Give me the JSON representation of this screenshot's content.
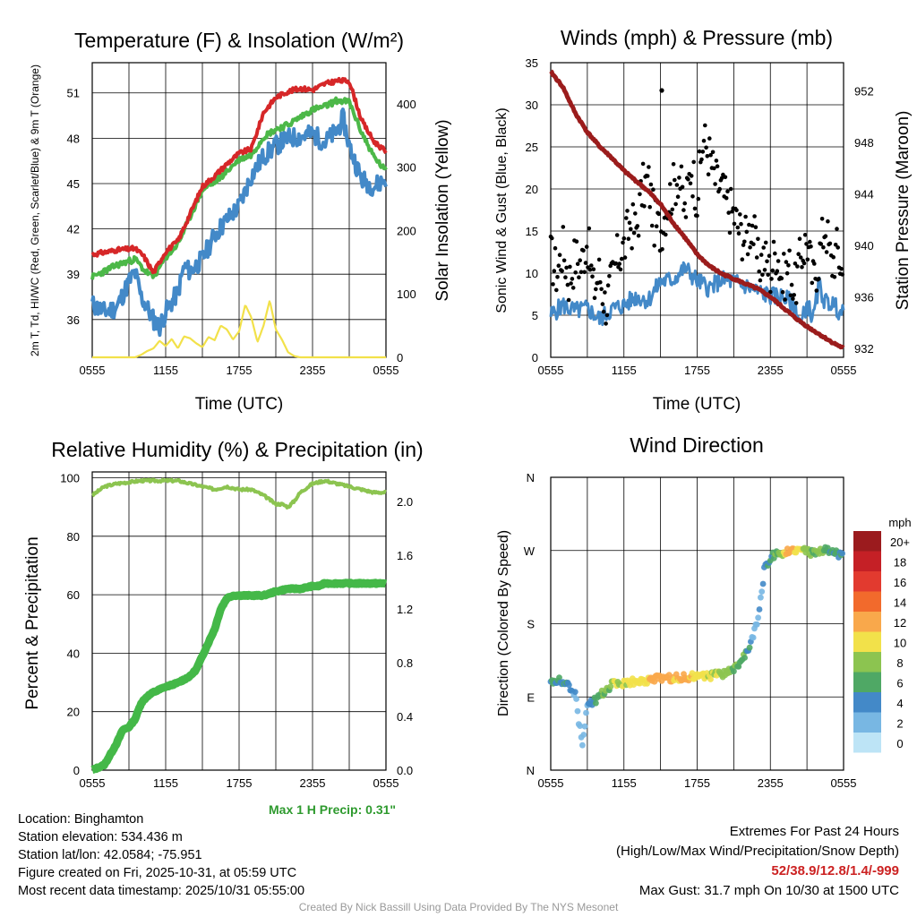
{
  "chart_data": [
    {
      "type": "line",
      "title": "Temperature (F) & Insolation (W/m²)",
      "xlabel": "Time (UTC)",
      "ylabel_left": "2m T, Td, HI/WC (Red, Green, Scarlet/Blue) & 9m T (Orange)",
      "ylabel_right": "Solar Insolation (Yellow)",
      "x_ticks": [
        "0555",
        "1155",
        "1755",
        "2355",
        "0555"
      ],
      "ylim_left": [
        33.5,
        53.0
      ],
      "yticks_left": [
        36,
        39,
        42,
        45,
        48,
        51
      ],
      "ylim_right": [
        0,
        465
      ],
      "yticks_right": [
        0,
        100,
        200,
        300,
        400
      ],
      "series": [
        {
          "name": "2m T",
          "color": "#d62728",
          "hours": [
            0,
            2,
            3.5,
            4.2,
            5,
            6,
            7,
            8,
            9,
            10,
            11,
            12,
            13,
            14,
            15,
            16,
            17,
            18,
            19,
            20,
            21,
            22,
            23,
            24
          ],
          "values": [
            40.3,
            40.6,
            40.7,
            40.2,
            39.1,
            40.5,
            41.2,
            43,
            44.8,
            45.5,
            46.3,
            47,
            47.3,
            49.7,
            50.7,
            51.1,
            51.3,
            51.2,
            51.6,
            51.8,
            51.8,
            49.2,
            47.8,
            47.1
          ]
        },
        {
          "name": "Dewpoint",
          "color": "#4cb848",
          "hours": [
            0,
            2,
            3.5,
            4.2,
            5,
            6,
            7,
            8,
            9,
            10,
            11,
            12,
            13,
            14,
            15,
            16,
            17,
            18,
            19,
            20,
            21,
            22,
            23,
            24
          ],
          "values": [
            38.8,
            39.6,
            40.0,
            39.3,
            38.8,
            40.1,
            41.0,
            42.8,
            44.6,
            45.1,
            45.8,
            46.6,
            46.9,
            48.1,
            48.6,
            48.9,
            49.4,
            49.9,
            50.1,
            50.5,
            50.4,
            48.4,
            46.8,
            45.8
          ]
        },
        {
          "name": "Wind Chill",
          "color": "#4389c8",
          "hours": [
            0,
            1,
            2,
            3,
            3.5,
            4,
            5,
            5.5,
            6,
            7,
            7.5,
            8,
            9,
            10,
            11,
            12,
            13,
            14,
            15,
            16,
            17,
            18,
            19,
            20,
            20.5,
            21,
            22,
            23,
            24
          ],
          "values": [
            37,
            36.5,
            36.8,
            38.5,
            39.1,
            37.5,
            36.0,
            35.5,
            36.5,
            37.8,
            39.5,
            39.2,
            40.0,
            41.6,
            42.6,
            43.5,
            45.5,
            46.8,
            47.5,
            48.0,
            48.1,
            48.3,
            47.7,
            48.5,
            49.3,
            47.5,
            45.3,
            44.8,
            45.3
          ]
        },
        {
          "name": "Solar Insolation",
          "color": "#f2e14a",
          "axis": "right",
          "hours": [
            0,
            3.5,
            4,
            4.5,
            5,
            5.5,
            6,
            6.5,
            7,
            7.5,
            8,
            8.5,
            9,
            9.5,
            10,
            10.5,
            11,
            11.5,
            12,
            12.5,
            13,
            13.5,
            14,
            14.5,
            15,
            15.5,
            16,
            16.5,
            17,
            17.5,
            18,
            24
          ],
          "values": [
            0,
            0,
            4,
            10,
            14,
            26,
            18,
            29,
            14,
            33,
            30,
            22,
            16,
            32,
            27,
            50,
            44,
            28,
            41,
            83,
            63,
            24,
            50,
            90,
            44,
            28,
            8,
            2,
            0,
            0,
            0,
            0
          ]
        }
      ]
    },
    {
      "type": "line",
      "title": "Winds (mph) & Pressure (mb)",
      "xlabel": "Time (UTC)",
      "ylabel_left": "Sonic Wind & Gust (Blue, Black)",
      "ylabel_right": "Station Pressure (Maroon)",
      "x_ticks": [
        "0555",
        "1155",
        "1755",
        "2355",
        "0555"
      ],
      "ylim_left": [
        0,
        35
      ],
      "yticks_left": [
        0,
        5,
        10,
        15,
        20,
        25,
        30,
        35
      ],
      "ylim_right": [
        931.3,
        954.2
      ],
      "yticks_right": [
        932,
        936,
        940,
        944,
        948,
        952
      ],
      "series": [
        {
          "name": "Station Pressure",
          "color": "#9b1c1c",
          "axis": "right",
          "hours": [
            0,
            1,
            2,
            3,
            4,
            5,
            6,
            7,
            8,
            9,
            10,
            11,
            12,
            13,
            14,
            15,
            16,
            17,
            18,
            19,
            20,
            21,
            22,
            23,
            24
          ],
          "values": [
            953.5,
            952.3,
            950.3,
            948.8,
            947.7,
            946.8,
            945.8,
            945.0,
            944.2,
            943.2,
            941.8,
            940.6,
            939.3,
            938.4,
            937.8,
            937.4,
            937.0,
            936.6,
            936.0,
            935.2,
            934.4,
            933.7,
            933.1,
            932.5,
            932.0
          ]
        },
        {
          "name": "Sonic Wind",
          "color": "#4389c8",
          "hours": [
            0,
            1,
            2,
            3,
            4,
            5,
            6,
            7,
            8,
            9,
            10,
            11,
            12,
            13,
            14,
            15,
            16,
            17,
            18,
            19,
            20,
            20.5,
            21,
            21.5,
            22,
            22.5,
            23,
            24
          ],
          "values": [
            5,
            6.2,
            5.5,
            5.8,
            4.5,
            5.7,
            6.2,
            7.2,
            6.8,
            9,
            9.2,
            10.6,
            9.1,
            8.2,
            9.2,
            9,
            8.5,
            7.8,
            7.3,
            7.2,
            6.2,
            3.8,
            6.5,
            4.5,
            8.6,
            6.5,
            6.5,
            5
          ]
        },
        {
          "name": "Gust",
          "color": "#000000",
          "type": "scatter",
          "hours": [
            0,
            0.5,
            1,
            1.5,
            2,
            2.5,
            3,
            3.5,
            4,
            4.5,
            5,
            5.5,
            6,
            6.5,
            7,
            7.5,
            8,
            8.5,
            9,
            9.5,
            10,
            10.5,
            11,
            11.5,
            12,
            12.5,
            13,
            13.5,
            14,
            14.5,
            15,
            15.5,
            16,
            16.5,
            17,
            17.5,
            18,
            18.5,
            19,
            19.5,
            20,
            20.5,
            21,
            21.5,
            22,
            22.5,
            23,
            23.5,
            24
          ],
          "values": [
            12,
            10,
            13,
            9,
            12,
            11,
            14,
            8,
            10,
            6,
            9,
            12,
            13,
            16,
            15,
            20,
            21,
            16,
            15,
            18,
            20,
            22,
            17,
            23,
            19,
            26,
            24,
            21,
            20,
            18,
            17,
            15,
            14,
            16,
            11,
            12,
            10,
            13,
            9,
            11,
            8,
            12,
            14,
            9,
            12,
            16,
            11,
            13,
            9
          ]
        }
      ],
      "max_gust_point": {
        "hours": 9.1,
        "value": 31.7
      }
    },
    {
      "type": "line",
      "title": "Relative Humidity (%) & Precipitation (in)",
      "xlabel": "",
      "ylabel_left": "Percent & Precipitation",
      "x_ticks": [
        "0555",
        "1155",
        "1755",
        "2355",
        "0555"
      ],
      "ylim_left": [
        0,
        102
      ],
      "yticks_left": [
        0,
        20,
        40,
        60,
        80,
        100
      ],
      "ylim_right": [
        0,
        2.22
      ],
      "yticks_right": [
        "0.0",
        "0.4",
        "0.8",
        "1.2",
        "1.6",
        "2.0"
      ],
      "series": [
        {
          "name": "Relative Humidity",
          "color": "#8cc450",
          "hours": [
            0,
            1,
            2,
            3,
            4,
            5,
            6,
            7,
            8,
            9,
            10,
            11,
            12,
            13,
            14,
            15,
            15.5,
            16,
            16.5,
            17,
            18,
            19,
            20,
            21,
            22,
            23,
            24
          ],
          "values": [
            94,
            97,
            98,
            98.5,
            99,
            99,
            99,
            99,
            98,
            97,
            96,
            97,
            96,
            96,
            94,
            91,
            91,
            90,
            92,
            95,
            98,
            99,
            98,
            97,
            96,
            95,
            95
          ]
        },
        {
          "name": "Precipitation",
          "color": "#44b848",
          "axis": "right",
          "hours": [
            0,
            0.5,
            1,
            1.5,
            2,
            2.5,
            3,
            3.5,
            4,
            4.5,
            5,
            6,
            7,
            8,
            8.5,
            9,
            9.5,
            10,
            10.5,
            11,
            11.5,
            12,
            12.5,
            13,
            14,
            15,
            16,
            17,
            18,
            18.5,
            19,
            20,
            21,
            22,
            23,
            24
          ],
          "values": [
            0,
            0.02,
            0.04,
            0.12,
            0.2,
            0.3,
            0.32,
            0.38,
            0.5,
            0.55,
            0.58,
            0.62,
            0.65,
            0.7,
            0.75,
            0.85,
            0.95,
            1.05,
            1.2,
            1.28,
            1.3,
            1.3,
            1.3,
            1.3,
            1.3,
            1.33,
            1.35,
            1.35,
            1.37,
            1.37,
            1.39,
            1.39,
            1.39,
            1.39,
            1.39,
            1.39
          ]
        }
      ]
    },
    {
      "type": "scatter",
      "title": "Wind Direction",
      "ylabel_left": "Direction (Colored By Speed)",
      "x_ticks": [
        "0555",
        "1155",
        "1755",
        "2355",
        "0555"
      ],
      "y_ticks": [
        "N",
        "E",
        "S",
        "W",
        "N"
      ],
      "ylim_degrees": [
        0,
        360
      ],
      "colorbar": {
        "unit": "mph",
        "labels": [
          "20+",
          "18",
          "16",
          "14",
          "12",
          "10",
          "8",
          "6",
          "4",
          "2",
          "0"
        ],
        "colors": [
          "#9b1b1e",
          "#c52026",
          "#e23a2f",
          "#f26a2c",
          "#f9a84b",
          "#f2e14a",
          "#8cc450",
          "#4fa865",
          "#4389c8",
          "#78b7e3",
          "#bde4f6"
        ]
      },
      "points": {
        "hours": [
          0,
          0.3,
          0.6,
          1,
          1.3,
          1.7,
          2,
          2.3,
          2.6,
          3,
          3.3,
          3.6,
          4,
          4.3,
          4.6,
          5,
          5.5,
          6,
          6.5,
          7,
          7.5,
          8,
          8.5,
          9,
          9.5,
          10,
          10.5,
          11,
          11.5,
          12,
          12.5,
          13,
          13.5,
          14,
          14.5,
          15,
          15.5,
          16,
          16.5,
          17,
          17.5,
          18,
          18.5,
          19,
          19.5,
          20,
          20.5,
          21,
          21.5,
          22,
          22.5,
          23,
          23.5,
          24
        ],
        "degrees": [
          110,
          108,
          112,
          105,
          108,
          100,
          95,
          60,
          35,
          80,
          82,
          85,
          90,
          95,
          97,
          105,
          106,
          107,
          108,
          109,
          110,
          111,
          112,
          112,
          113,
          113,
          114,
          114,
          115,
          115,
          116,
          116,
          117,
          118,
          120,
          125,
          130,
          145,
          160,
          185,
          245,
          262,
          265,
          267,
          270,
          272,
          270,
          268,
          266,
          268,
          270,
          268,
          266,
          262
        ],
        "speeds": [
          4,
          5,
          5,
          4,
          5,
          4,
          3,
          2,
          1,
          3,
          4,
          5,
          6,
          7,
          7,
          8,
          9,
          9,
          10,
          10,
          10,
          11,
          11,
          12,
          12,
          12,
          11,
          12,
          11,
          10,
          10,
          9,
          9,
          8,
          8,
          7,
          7,
          6,
          3,
          2,
          4,
          5,
          7,
          8,
          12,
          11,
          9,
          8,
          7,
          8,
          6,
          5,
          6,
          4
        ]
      }
    }
  ],
  "info": {
    "location": "Location: Binghamton",
    "elevation": "Station elevation: 534.436 m",
    "latlon": "Station lat/lon: 42.0584; -75.951",
    "created": "Figure created on Fri, 2025-10-31, at 05:59 UTC",
    "recent": "Most recent data timestamp: 2025/10/31 05:55:00"
  },
  "precip_max": "Max 1 H Precip: 0.31\"",
  "extremes": {
    "line1": "Extremes For Past 24 Hours",
    "line2": "(High/Low/Max Wind/Precipitation/Snow Depth)",
    "values": "52/38.9/12.8/1.4/-999",
    "values_color": "#cc2222",
    "gust": "Max Gust: 31.7 mph On 10/30 at 1500 UTC"
  },
  "credit": "Created By Nick Bassill Using Data Provided By The NYS Mesonet"
}
